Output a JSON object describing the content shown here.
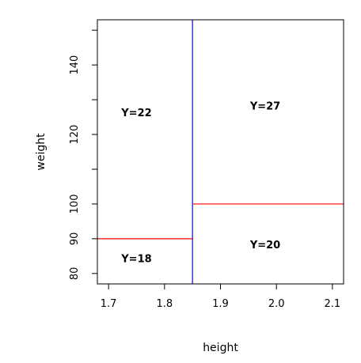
{
  "chart_data": {
    "type": "partition",
    "xlabel": "height",
    "ylabel": "weight",
    "xlim": [
      1.68,
      2.12
    ],
    "ylim": [
      77,
      153
    ],
    "x_ticks": [
      1.7,
      1.8,
      1.9,
      2.0,
      2.1
    ],
    "x_tick_labels": [
      "1.7",
      "1.8",
      "1.9",
      "2.0",
      "2.1"
    ],
    "y_ticks": [
      80,
      90,
      100,
      110,
      120,
      130,
      140,
      150
    ],
    "y_tick_labels": [
      "80",
      "90",
      "100",
      "",
      "120",
      "",
      "140",
      ""
    ],
    "grid": false,
    "splits": [
      {
        "axis": "x",
        "value": 1.85,
        "y_from": 77,
        "y_to": 153,
        "color": "#0000ff"
      },
      {
        "axis": "y",
        "value": 90,
        "x_from": 1.68,
        "x_to": 1.85,
        "color": "#ff0000"
      },
      {
        "axis": "y",
        "value": 100,
        "x_from": 1.85,
        "x_to": 2.12,
        "color": "#ff0000"
      }
    ],
    "region_labels": [
      {
        "text": "Y=22",
        "x": 1.75,
        "y": 126
      },
      {
        "text": "Y=27",
        "x": 1.98,
        "y": 128
      },
      {
        "text": "Y=18",
        "x": 1.75,
        "y": 84
      },
      {
        "text": "Y=20",
        "x": 1.98,
        "y": 88
      }
    ]
  }
}
